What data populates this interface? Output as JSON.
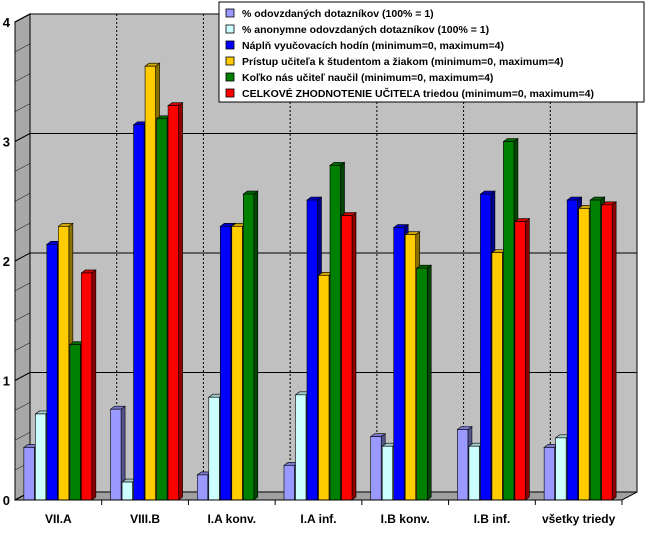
{
  "chart_data": {
    "type": "bar",
    "title": "",
    "xlabel": "",
    "ylabel": "",
    "ylim": [
      0,
      4
    ],
    "yticks": [
      "0",
      "1",
      "2",
      "3",
      "4"
    ],
    "grid": true,
    "legend_position": "top-right",
    "categories": [
      "VII.A",
      "VIII.B",
      "I.A konv.",
      "I.A inf.",
      "I.B konv.",
      "I.B inf.",
      "všetky triedy"
    ],
    "series": [
      {
        "name": "% odovzdaných dotazníkov     (100% = 1)",
        "color": "#9999ff",
        "values": [
          0.44,
          0.76,
          0.21,
          0.29,
          0.53,
          0.59,
          0.44
        ]
      },
      {
        "name": "% anonymne odovzdaných dotazníkov     (100% = 1)",
        "color": "#ccffff",
        "values": [
          0.72,
          0.15,
          0.86,
          0.88,
          0.45,
          0.45,
          0.52
        ]
      },
      {
        "name": "Náplň vyučovacích hodín     (minimum=0, maximum=4)",
        "color": "#0000ff",
        "values": [
          2.14,
          3.14,
          2.29,
          2.51,
          2.28,
          2.56,
          2.51
        ]
      },
      {
        "name": "Prístup učiteľa k študentom a žiakom     (minimum=0, maximum=4)",
        "color": "#ffcc00",
        "values": [
          2.29,
          3.63,
          2.29,
          1.88,
          2.22,
          2.07,
          2.44
        ]
      },
      {
        "name": "Koľko nás učiteľ naučil     (minimum=0, maximum=4)",
        "color": "#008000",
        "values": [
          1.3,
          3.19,
          2.56,
          2.8,
          1.94,
          3.0,
          2.51
        ]
      },
      {
        "name": "CELKOVÉ ZHODNOTENIE UČITEĽA triedou     (minimum=0, maximum=4)",
        "color": "#ff0000",
        "values": [
          1.9,
          3.3,
          0,
          2.38,
          0,
          2.33,
          2.47
        ]
      }
    ]
  }
}
